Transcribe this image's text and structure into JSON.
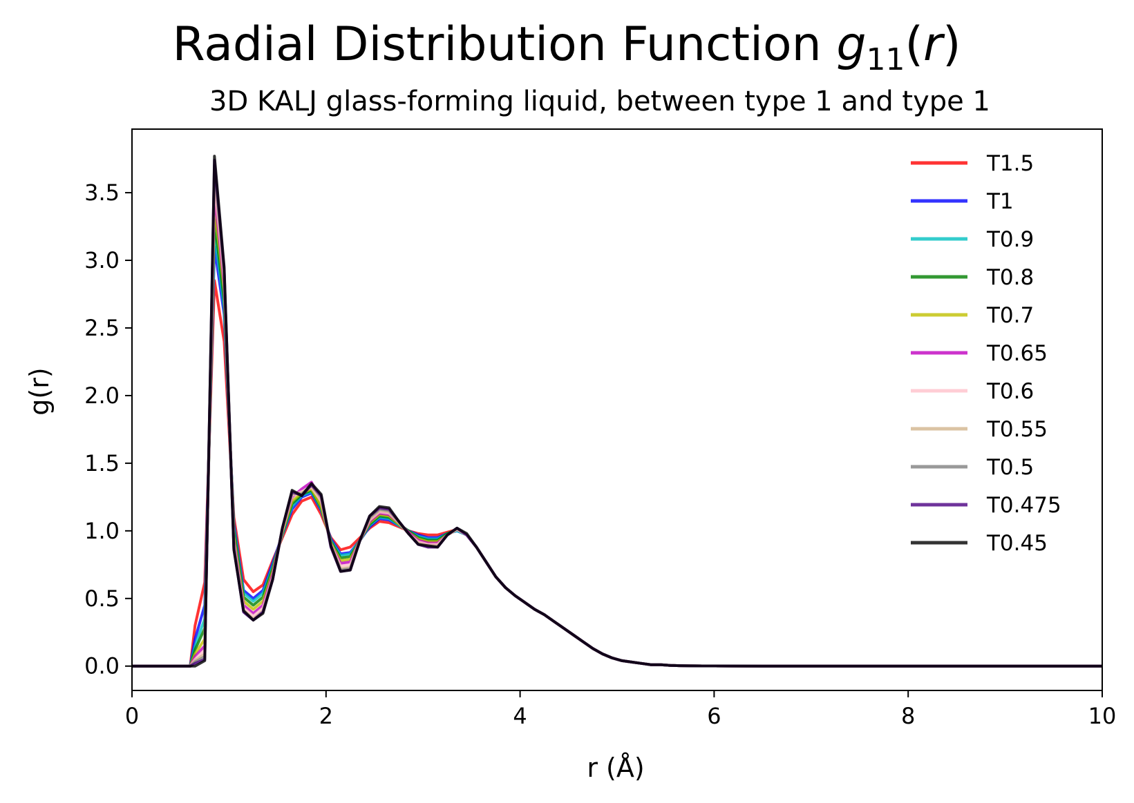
{
  "chart_data": {
    "type": "line",
    "title": "Radial Distribution Function",
    "title_math": "g11(r)",
    "subtitle": "3D KALJ glass-forming liquid, between type 1 and type 1",
    "xlabel": "r (Å)",
    "ylabel": "g(r)",
    "xlim": [
      0,
      10
    ],
    "ylim": [
      -0.18,
      3.97
    ],
    "xticks": [
      "0",
      "2",
      "4",
      "6",
      "8",
      "10"
    ],
    "yticks": [
      "0.0",
      "0.5",
      "1.0",
      "1.5",
      "2.0",
      "2.5",
      "3.0",
      "3.5"
    ],
    "legend_position": "top-right",
    "grid": false,
    "x": [
      0,
      0.1,
      0.2,
      0.3,
      0.4,
      0.5,
      0.6,
      0.65,
      0.75,
      0.85,
      0.95,
      1.05,
      1.15,
      1.25,
      1.35,
      1.45,
      1.55,
      1.65,
      1.75,
      1.85,
      1.95,
      2.05,
      2.15,
      2.25,
      2.35,
      2.45,
      2.55,
      2.65,
      2.75,
      2.85,
      2.95,
      3.05,
      3.15,
      3.25,
      3.35,
      3.45,
      3.55,
      3.65,
      3.75,
      3.85,
      3.95,
      4.05,
      4.15,
      4.25,
      4.35,
      4.45,
      4.55,
      4.65,
      4.75,
      4.85,
      4.95,
      5.05,
      5.15,
      5.25,
      5.35,
      5.45,
      5.55,
      5.65,
      5.75,
      6.0,
      6.5,
      7.0,
      7.5,
      8.0,
      8.5,
      9.0,
      9.5,
      10.0
    ],
    "series": [
      {
        "name": "T1.5",
        "color": "#ff0000",
        "values": [
          0,
          0,
          0,
          0,
          0,
          0,
          0,
          0.3,
          0.62,
          2.85,
          2.4,
          1.1,
          0.64,
          0.55,
          0.6,
          0.78,
          0.95,
          1.12,
          1.22,
          1.25,
          1.12,
          0.95,
          0.86,
          0.88,
          0.95,
          1.02,
          1.07,
          1.06,
          1.03,
          1.0,
          0.98,
          0.97,
          0.97,
          0.99,
          1.01,
          0.97,
          0.88,
          0.77,
          0.66,
          0.58,
          0.52,
          0.47,
          0.42,
          0.38,
          0.33,
          0.28,
          0.23,
          0.18,
          0.13,
          0.09,
          0.06,
          0.04,
          0.03,
          0.02,
          0.01,
          0.01,
          0.005,
          0.003,
          0.002,
          0.001,
          0,
          0,
          0,
          0,
          0,
          0,
          0,
          0
        ]
      },
      {
        "name": "T1",
        "color": "#0000ff",
        "values": [
          0,
          0,
          0,
          0,
          0,
          0,
          0,
          0.2,
          0.45,
          3.1,
          2.6,
          1.05,
          0.56,
          0.5,
          0.56,
          0.76,
          0.97,
          1.16,
          1.25,
          1.28,
          1.15,
          0.94,
          0.83,
          0.84,
          0.93,
          1.03,
          1.09,
          1.08,
          1.04,
          1.0,
          0.97,
          0.95,
          0.95,
          0.98,
          1.0,
          0.97,
          0.88,
          0.77,
          0.66,
          0.58,
          0.52,
          0.47,
          0.42,
          0.38,
          0.33,
          0.28,
          0.23,
          0.18,
          0.13,
          0.09,
          0.06,
          0.04,
          0.03,
          0.02,
          0.01,
          0.01,
          0.005,
          0.003,
          0.002,
          0.001,
          0,
          0,
          0,
          0,
          0,
          0,
          0,
          0
        ]
      },
      {
        "name": "T0.9",
        "color": "#00bfbf",
        "values": [
          0,
          0,
          0,
          0,
          0,
          0,
          0,
          0.15,
          0.35,
          3.2,
          2.65,
          1.03,
          0.54,
          0.48,
          0.54,
          0.74,
          0.97,
          1.18,
          1.26,
          1.29,
          1.16,
          0.93,
          0.82,
          0.83,
          0.93,
          1.04,
          1.1,
          1.09,
          1.04,
          1.0,
          0.96,
          0.94,
          0.94,
          0.98,
          1.0,
          0.97,
          0.88,
          0.77,
          0.66,
          0.58,
          0.52,
          0.47,
          0.42,
          0.38,
          0.33,
          0.28,
          0.23,
          0.18,
          0.13,
          0.09,
          0.06,
          0.04,
          0.03,
          0.02,
          0.01,
          0.01,
          0.005,
          0.003,
          0.002,
          0.001,
          0,
          0,
          0,
          0,
          0,
          0,
          0,
          0
        ]
      },
      {
        "name": "T0.8",
        "color": "#008000",
        "values": [
          0,
          0,
          0,
          0,
          0,
          0,
          0,
          0.12,
          0.28,
          3.3,
          2.7,
          1.0,
          0.51,
          0.45,
          0.51,
          0.72,
          0.98,
          1.2,
          1.27,
          1.3,
          1.17,
          0.92,
          0.8,
          0.81,
          0.93,
          1.05,
          1.11,
          1.1,
          1.05,
          1.0,
          0.95,
          0.93,
          0.93,
          0.98,
          1.01,
          0.97,
          0.88,
          0.77,
          0.66,
          0.58,
          0.52,
          0.47,
          0.42,
          0.38,
          0.33,
          0.28,
          0.23,
          0.18,
          0.13,
          0.09,
          0.06,
          0.04,
          0.03,
          0.02,
          0.01,
          0.01,
          0.005,
          0.003,
          0.002,
          0.001,
          0,
          0,
          0,
          0,
          0,
          0,
          0,
          0
        ]
      },
      {
        "name": "T0.7",
        "color": "#bfbf00",
        "values": [
          0,
          0,
          0,
          0,
          0,
          0,
          0,
          0.09,
          0.2,
          3.4,
          2.78,
          0.96,
          0.48,
          0.42,
          0.48,
          0.7,
          0.99,
          1.22,
          1.28,
          1.31,
          1.18,
          0.91,
          0.78,
          0.79,
          0.93,
          1.06,
          1.12,
          1.11,
          1.05,
          0.99,
          0.94,
          0.92,
          0.92,
          0.97,
          1.01,
          0.97,
          0.88,
          0.77,
          0.66,
          0.58,
          0.52,
          0.47,
          0.42,
          0.38,
          0.33,
          0.28,
          0.23,
          0.18,
          0.13,
          0.09,
          0.06,
          0.04,
          0.03,
          0.02,
          0.01,
          0.01,
          0.005,
          0.003,
          0.002,
          0.001,
          0,
          0,
          0,
          0,
          0,
          0,
          0,
          0
        ]
      },
      {
        "name": "T0.65",
        "color": "#bf00bf",
        "values": [
          0,
          0,
          0,
          0,
          0,
          0,
          0,
          0.07,
          0.15,
          3.5,
          2.82,
          0.93,
          0.45,
          0.39,
          0.45,
          0.68,
          1.0,
          1.25,
          1.31,
          1.36,
          1.22,
          0.9,
          0.76,
          0.77,
          0.93,
          1.07,
          1.13,
          1.12,
          1.06,
          0.99,
          0.93,
          0.91,
          0.91,
          0.97,
          1.01,
          0.97,
          0.88,
          0.77,
          0.66,
          0.58,
          0.52,
          0.47,
          0.42,
          0.38,
          0.33,
          0.28,
          0.23,
          0.18,
          0.13,
          0.09,
          0.06,
          0.04,
          0.03,
          0.02,
          0.01,
          0.01,
          0.005,
          0.003,
          0.002,
          0.001,
          0,
          0,
          0,
          0,
          0,
          0,
          0,
          0
        ]
      },
      {
        "name": "T0.6",
        "color": "#ffc0cb",
        "values": [
          0,
          0,
          0,
          0,
          0,
          0,
          0,
          0.05,
          0.12,
          3.58,
          2.86,
          0.91,
          0.43,
          0.37,
          0.43,
          0.66,
          1.0,
          1.26,
          1.29,
          1.32,
          1.22,
          0.9,
          0.74,
          0.75,
          0.93,
          1.08,
          1.14,
          1.13,
          1.06,
          0.98,
          0.92,
          0.9,
          0.9,
          0.97,
          1.01,
          0.97,
          0.88,
          0.77,
          0.66,
          0.58,
          0.52,
          0.47,
          0.42,
          0.38,
          0.33,
          0.28,
          0.23,
          0.18,
          0.13,
          0.09,
          0.06,
          0.04,
          0.03,
          0.02,
          0.01,
          0.01,
          0.005,
          0.003,
          0.002,
          0.001,
          0,
          0,
          0,
          0,
          0,
          0,
          0,
          0
        ]
      },
      {
        "name": "T0.55",
        "color": "#d2b48c",
        "values": [
          0,
          0,
          0,
          0,
          0,
          0,
          0,
          0.04,
          0.09,
          3.65,
          2.9,
          0.89,
          0.41,
          0.35,
          0.41,
          0.65,
          1.01,
          1.27,
          1.28,
          1.33,
          1.24,
          0.89,
          0.72,
          0.73,
          0.93,
          1.09,
          1.15,
          1.14,
          1.06,
          0.98,
          0.91,
          0.89,
          0.89,
          0.97,
          1.01,
          0.97,
          0.88,
          0.77,
          0.66,
          0.58,
          0.52,
          0.47,
          0.42,
          0.38,
          0.33,
          0.28,
          0.23,
          0.18,
          0.13,
          0.09,
          0.06,
          0.04,
          0.03,
          0.02,
          0.01,
          0.01,
          0.005,
          0.003,
          0.002,
          0.001,
          0,
          0,
          0,
          0,
          0,
          0,
          0,
          0
        ]
      },
      {
        "name": "T0.5",
        "color": "#808080",
        "values": [
          0,
          0,
          0,
          0,
          0,
          0,
          0,
          0.03,
          0.07,
          3.7,
          2.92,
          0.88,
          0.4,
          0.34,
          0.4,
          0.64,
          1.02,
          1.28,
          1.27,
          1.34,
          1.25,
          0.89,
          0.71,
          0.72,
          0.93,
          1.1,
          1.16,
          1.15,
          1.07,
          0.98,
          0.9,
          0.88,
          0.88,
          0.97,
          1.02,
          0.97,
          0.88,
          0.77,
          0.66,
          0.58,
          0.52,
          0.47,
          0.42,
          0.38,
          0.33,
          0.28,
          0.23,
          0.18,
          0.13,
          0.09,
          0.06,
          0.04,
          0.03,
          0.02,
          0.01,
          0.01,
          0.005,
          0.003,
          0.002,
          0.001,
          0,
          0,
          0,
          0,
          0,
          0,
          0,
          0
        ]
      },
      {
        "name": "T0.475",
        "color": "#4b0082",
        "values": [
          0,
          0,
          0,
          0,
          0,
          0,
          0,
          0.02,
          0.05,
          3.74,
          2.93,
          0.87,
          0.4,
          0.34,
          0.4,
          0.64,
          1.02,
          1.29,
          1.26,
          1.34,
          1.26,
          0.88,
          0.7,
          0.71,
          0.93,
          1.11,
          1.17,
          1.16,
          1.07,
          0.98,
          0.9,
          0.88,
          0.88,
          0.97,
          1.02,
          0.97,
          0.88,
          0.77,
          0.66,
          0.58,
          0.52,
          0.47,
          0.42,
          0.38,
          0.33,
          0.28,
          0.23,
          0.18,
          0.13,
          0.09,
          0.06,
          0.04,
          0.03,
          0.02,
          0.01,
          0.01,
          0.005,
          0.003,
          0.002,
          0.001,
          0,
          0,
          0,
          0,
          0,
          0,
          0,
          0
        ]
      },
      {
        "name": "T0.45",
        "color": "#000000",
        "values": [
          0,
          0,
          0,
          0,
          0,
          0,
          0,
          0.0,
          0.04,
          3.77,
          2.95,
          0.86,
          0.41,
          0.34,
          0.39,
          0.64,
          1.02,
          1.3,
          1.26,
          1.35,
          1.27,
          0.89,
          0.7,
          0.71,
          0.93,
          1.11,
          1.18,
          1.17,
          1.07,
          0.98,
          0.9,
          0.89,
          0.88,
          0.97,
          1.02,
          0.98,
          0.88,
          0.77,
          0.66,
          0.58,
          0.52,
          0.47,
          0.42,
          0.38,
          0.33,
          0.28,
          0.23,
          0.18,
          0.13,
          0.09,
          0.06,
          0.04,
          0.03,
          0.02,
          0.01,
          0.01,
          0.005,
          0.003,
          0.002,
          0.001,
          0,
          0,
          0,
          0,
          0,
          0,
          0,
          0
        ]
      }
    ]
  }
}
